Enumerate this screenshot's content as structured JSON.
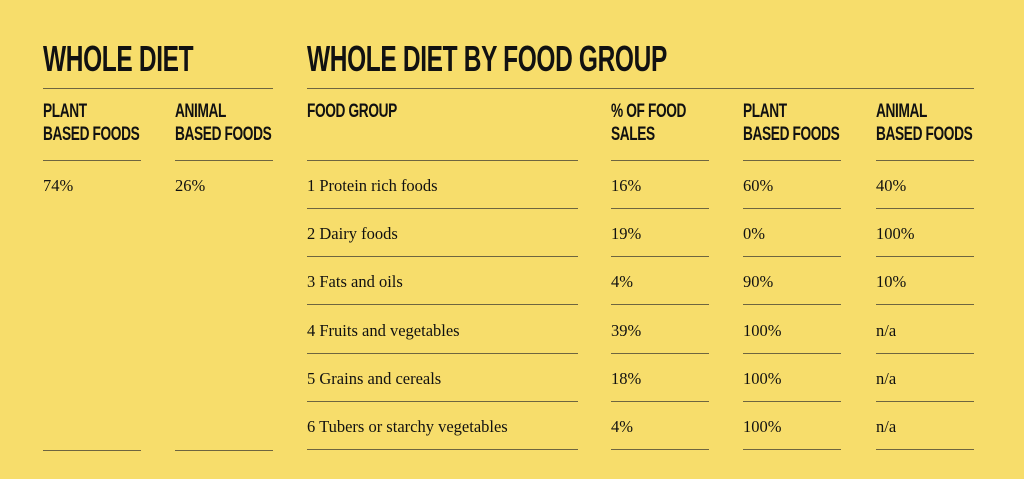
{
  "whole_diet": {
    "title": "WHOLE DIET",
    "headers": [
      "PLANT\nBASED FOODS",
      "ANIMAL\nBASED FOODS"
    ],
    "values": [
      "74%",
      "26%"
    ]
  },
  "by_group": {
    "title": "WHOLE DIET BY FOOD GROUP",
    "headers": [
      "FOOD GROUP",
      "% OF FOOD\nSALES",
      "PLANT\nBASED FOODS",
      "ANIMAL\nBASED FOODS"
    ],
    "rows": [
      [
        "1 Protein rich foods",
        "16%",
        "60%",
        "40%"
      ],
      [
        "2 Dairy foods",
        "19%",
        "0%",
        "100%"
      ],
      [
        "3 Fats and oils",
        "4%",
        "90%",
        "10%"
      ],
      [
        "4 Fruits and vegetables",
        "39%",
        "100%",
        "n/a"
      ],
      [
        "5 Grains and cereals",
        "18%",
        "100%",
        "n/a"
      ],
      [
        "6 Tubers or starchy vegetables",
        "4%",
        "100%",
        "n/a"
      ]
    ]
  }
}
